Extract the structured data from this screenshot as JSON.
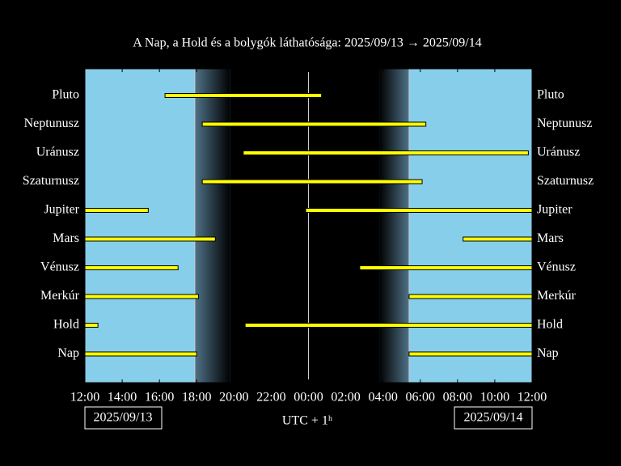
{
  "chart_data": {
    "type": "timeline",
    "title": "A Nap, a Hold és a bolygók láthatósága: 2025/09/13 → 2025/09/14",
    "xlabel": "UTC + 1ʰ",
    "date_labels": [
      "2025/09/13",
      "2025/09/14"
    ],
    "xlim": [
      12,
      36
    ],
    "xticks": [
      {
        "value": 12,
        "label": "12:00"
      },
      {
        "value": 14,
        "label": "14:00"
      },
      {
        "value": 16,
        "label": "16:00"
      },
      {
        "value": 18,
        "label": "18:00"
      },
      {
        "value": 20,
        "label": "20:00"
      },
      {
        "value": 22,
        "label": "22:00"
      },
      {
        "value": 24,
        "label": "00:00"
      },
      {
        "value": 26,
        "label": "02:00"
      },
      {
        "value": 28,
        "label": "04:00"
      },
      {
        "value": 30,
        "label": "06:00"
      },
      {
        "value": 32,
        "label": "08:00"
      },
      {
        "value": 34,
        "label": "10:00"
      },
      {
        "value": 36,
        "label": "12:00"
      }
    ],
    "twilight": [
      17.9,
      19.8,
      27.8,
      29.4
    ],
    "vlines": [
      17.9,
      24,
      29.4
    ],
    "sky_color": "#87ceeb",
    "night_color": "#000000",
    "bar_color": "#ffff00",
    "series": [
      {
        "name": "Pluto",
        "segments": [
          [
            16.3,
            24.7
          ]
        ]
      },
      {
        "name": "Neptunusz",
        "segments": [
          [
            18.3,
            30.3
          ]
        ]
      },
      {
        "name": "Uránusz",
        "segments": [
          [
            20.5,
            35.8
          ]
        ]
      },
      {
        "name": "Szaturnusz",
        "segments": [
          [
            18.3,
            30.1
          ]
        ]
      },
      {
        "name": "Jupiter",
        "segments": [
          [
            12,
            15.4
          ],
          [
            23.85,
            36
          ]
        ]
      },
      {
        "name": "Mars",
        "segments": [
          [
            12,
            19.0
          ],
          [
            32.3,
            36
          ]
        ]
      },
      {
        "name": "Vénusz",
        "segments": [
          [
            12,
            17.0
          ],
          [
            26.75,
            36
          ]
        ]
      },
      {
        "name": "Merkúr",
        "segments": [
          [
            12,
            18.1
          ],
          [
            29.4,
            36
          ]
        ]
      },
      {
        "name": "Hold",
        "segments": [
          [
            12,
            12.7
          ],
          [
            20.6,
            36
          ]
        ]
      },
      {
        "name": "Nap",
        "segments": [
          [
            12,
            18.0
          ],
          [
            29.4,
            36
          ]
        ]
      }
    ]
  }
}
